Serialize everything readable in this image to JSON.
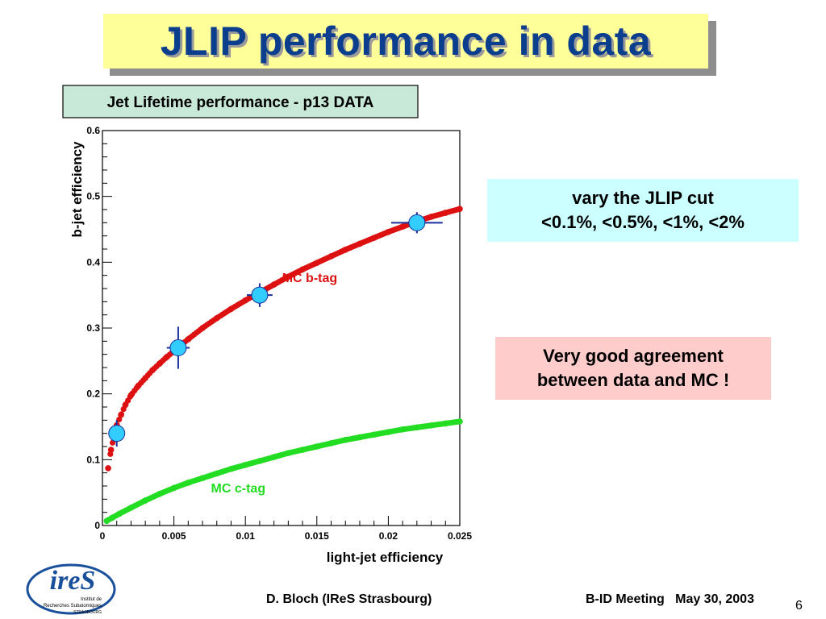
{
  "slide": {
    "title": "JLIP performance in data",
    "callout_jlip": {
      "line1": "vary the JLIP cut",
      "line2": "<0.1%, <0.5%, <1%, <2%"
    },
    "callout_agreement": {
      "line1": "Very good agreement",
      "line2": "between data and MC !"
    },
    "footer": {
      "author": "D. Bloch (IReS Strasbourg)",
      "meeting": "B-ID Meeting   May 30, 2003",
      "page": "6"
    },
    "logo": {
      "name": "ireS",
      "line1": "Institut de",
      "line2": "Recherches Subatomiques",
      "line3": "STRASBOURG"
    }
  },
  "chart_data": {
    "type": "scatter",
    "title": "Jet Lifetime performance - p13 DATA",
    "xlabel": "light-jet efficiency",
    "ylabel": "b-jet efficiency",
    "xlim": [
      0,
      0.025
    ],
    "ylim": [
      0,
      0.6
    ],
    "x_ticks": [
      0,
      0.005,
      0.01,
      0.015,
      0.02,
      0.025
    ],
    "x_tick_labels": [
      "0",
      "0.005",
      "0.01",
      "0.015",
      "0.02",
      "0.025"
    ],
    "y_ticks": [
      0,
      0.1,
      0.2,
      0.3,
      0.4,
      0.5,
      0.6
    ],
    "y_tick_labels": [
      "0",
      "0.1",
      "0.2",
      "0.3",
      "0.4",
      "0.5",
      "0.6"
    ],
    "series": [
      {
        "name": "MC b-tag",
        "color": "#dd1111",
        "x": [
          0.0004,
          0.0006,
          0.0008,
          0.001,
          0.0013,
          0.0016,
          0.002,
          0.0025,
          0.003,
          0.0035,
          0.004,
          0.0045,
          0.005,
          0.006,
          0.007,
          0.008,
          0.009,
          0.01,
          0.011,
          0.012,
          0.013,
          0.014,
          0.015,
          0.016,
          0.017,
          0.018,
          0.019,
          0.02,
          0.021,
          0.022,
          0.023,
          0.024,
          0.025
        ],
        "y": [
          0.087,
          0.115,
          0.135,
          0.152,
          0.168,
          0.183,
          0.198,
          0.212,
          0.224,
          0.236,
          0.246,
          0.256,
          0.265,
          0.283,
          0.3,
          0.315,
          0.329,
          0.342,
          0.354,
          0.366,
          0.378,
          0.389,
          0.399,
          0.409,
          0.419,
          0.428,
          0.437,
          0.446,
          0.454,
          0.462,
          0.469,
          0.475,
          0.481
        ]
      },
      {
        "name": "MC c-tag",
        "color": "#22dd22",
        "x": [
          0.0003,
          0.0007,
          0.0012,
          0.002,
          0.003,
          0.004,
          0.005,
          0.006,
          0.007,
          0.008,
          0.009,
          0.01,
          0.011,
          0.012,
          0.013,
          0.014,
          0.015,
          0.016,
          0.017,
          0.018,
          0.019,
          0.02,
          0.021,
          0.022,
          0.023,
          0.024,
          0.025
        ],
        "y": [
          0.007,
          0.012,
          0.018,
          0.027,
          0.038,
          0.048,
          0.057,
          0.065,
          0.072,
          0.079,
          0.086,
          0.092,
          0.098,
          0.104,
          0.11,
          0.115,
          0.12,
          0.125,
          0.13,
          0.134,
          0.138,
          0.142,
          0.146,
          0.149,
          0.152,
          0.155,
          0.158
        ]
      },
      {
        "name": "data",
        "color": "#33ccff",
        "x": [
          0.001,
          0.0053,
          0.011,
          0.022
        ],
        "y": [
          0.14,
          0.27,
          0.35,
          0.46
        ],
        "x_err": [
          0.0004,
          0.0008,
          0.0009,
          0.0018
        ],
        "y_err": [
          0.02,
          0.032,
          0.018,
          0.016
        ]
      }
    ],
    "annotations": [
      {
        "text": "MC b-tag",
        "x": 0.0145,
        "y": 0.37,
        "color": "#dd1111"
      },
      {
        "text": "MC c-tag",
        "x": 0.0095,
        "y": 0.05,
        "color": "#22dd22"
      }
    ],
    "grid": false,
    "legend": "none"
  }
}
